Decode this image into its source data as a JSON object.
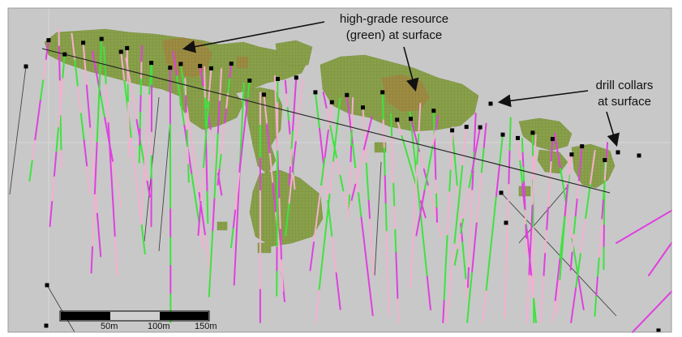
{
  "annotations": {
    "resource_line1": "high-grade resource",
    "resource_line2": "(green) at surface",
    "collars_line1": "drill collars",
    "collars_line2": "at surface"
  },
  "scale_bar": {
    "label_50": "50m",
    "label_100": "100m",
    "label_150": "150m"
  },
  "colors": {
    "background": "#c8c8c8",
    "resource_fill": "#8aa04a",
    "resource_highgrade": "#a0893f",
    "trace_green": "#3fe23f",
    "trace_magenta": "#e040e0",
    "trace_pink": "#f4b0d0",
    "collar": "#000000",
    "section_line": "#222222"
  }
}
